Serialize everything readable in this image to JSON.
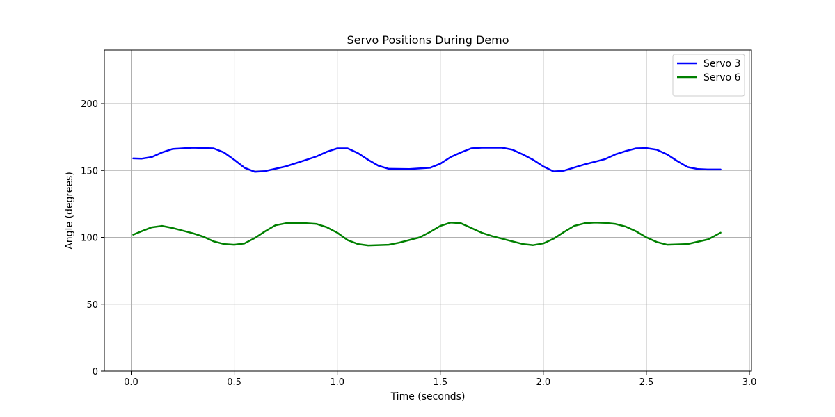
{
  "chart_data": {
    "type": "line",
    "title": "Servo Positions During Demo",
    "xlabel": "Time (seconds)",
    "ylabel": "Angle (degrees)",
    "xlim": [
      -0.13,
      3.01
    ],
    "ylim": [
      0,
      240
    ],
    "xticks": [
      0.0,
      0.5,
      1.0,
      1.5,
      2.0,
      2.5,
      3.0
    ],
    "xtick_labels": [
      "0.0",
      "0.5",
      "1.0",
      "1.5",
      "2.0",
      "2.5",
      "3.0"
    ],
    "yticks": [
      0,
      50,
      100,
      150,
      200
    ],
    "ytick_labels": [
      "0",
      "50",
      "100",
      "150",
      "200"
    ],
    "grid": true,
    "legend_position": "top-right",
    "series": [
      {
        "name": "Servo 3",
        "color": "#0000ff",
        "points": [
          [
            0.01,
            159
          ],
          [
            0.05,
            158.8
          ],
          [
            0.1,
            160
          ],
          [
            0.15,
            163.5
          ],
          [
            0.2,
            166
          ],
          [
            0.3,
            167
          ],
          [
            0.4,
            166.5
          ],
          [
            0.45,
            163.5
          ],
          [
            0.5,
            158
          ],
          [
            0.55,
            152
          ],
          [
            0.6,
            149
          ],
          [
            0.65,
            149.5
          ],
          [
            0.75,
            153
          ],
          [
            0.85,
            158
          ],
          [
            0.9,
            160.5
          ],
          [
            0.95,
            164
          ],
          [
            1.0,
            166.5
          ],
          [
            1.05,
            166.5
          ],
          [
            1.1,
            163
          ],
          [
            1.15,
            158
          ],
          [
            1.2,
            153.5
          ],
          [
            1.25,
            151.2
          ],
          [
            1.35,
            151
          ],
          [
            1.45,
            152
          ],
          [
            1.5,
            155
          ],
          [
            1.55,
            160
          ],
          [
            1.6,
            163.5
          ],
          [
            1.65,
            166.5
          ],
          [
            1.7,
            167
          ],
          [
            1.8,
            167
          ],
          [
            1.85,
            165.5
          ],
          [
            1.9,
            162
          ],
          [
            1.95,
            158
          ],
          [
            2.0,
            153
          ],
          [
            2.05,
            149.2
          ],
          [
            2.1,
            149.8
          ],
          [
            2.2,
            154.5
          ],
          [
            2.3,
            158.5
          ],
          [
            2.35,
            162
          ],
          [
            2.4,
            164.5
          ],
          [
            2.45,
            166.5
          ],
          [
            2.5,
            166.7
          ],
          [
            2.55,
            165.5
          ],
          [
            2.6,
            162
          ],
          [
            2.65,
            157
          ],
          [
            2.7,
            152.5
          ],
          [
            2.75,
            151
          ],
          [
            2.8,
            150.7
          ],
          [
            2.86,
            150.7
          ]
        ]
      },
      {
        "name": "Servo 6",
        "color": "#008000",
        "points": [
          [
            0.01,
            102
          ],
          [
            0.05,
            104.5
          ],
          [
            0.1,
            107.5
          ],
          [
            0.15,
            108.5
          ],
          [
            0.2,
            107
          ],
          [
            0.3,
            103
          ],
          [
            0.35,
            100.5
          ],
          [
            0.4,
            97
          ],
          [
            0.45,
            95
          ],
          [
            0.5,
            94.5
          ],
          [
            0.55,
            95.5
          ],
          [
            0.6,
            99.5
          ],
          [
            0.65,
            104.5
          ],
          [
            0.7,
            109
          ],
          [
            0.75,
            110.5
          ],
          [
            0.85,
            110.5
          ],
          [
            0.9,
            110
          ],
          [
            0.95,
            107.5
          ],
          [
            1.0,
            103.5
          ],
          [
            1.05,
            98
          ],
          [
            1.1,
            95
          ],
          [
            1.15,
            94
          ],
          [
            1.25,
            94.5
          ],
          [
            1.3,
            96
          ],
          [
            1.4,
            100
          ],
          [
            1.45,
            104
          ],
          [
            1.5,
            108.5
          ],
          [
            1.55,
            111
          ],
          [
            1.6,
            110.5
          ],
          [
            1.65,
            107
          ],
          [
            1.7,
            103.5
          ],
          [
            1.75,
            101
          ],
          [
            1.85,
            97
          ],
          [
            1.9,
            95
          ],
          [
            1.95,
            94.2
          ],
          [
            2.0,
            95.5
          ],
          [
            2.05,
            99
          ],
          [
            2.1,
            104
          ],
          [
            2.15,
            108.5
          ],
          [
            2.2,
            110.5
          ],
          [
            2.25,
            111
          ],
          [
            2.3,
            110.8
          ],
          [
            2.35,
            110
          ],
          [
            2.4,
            108
          ],
          [
            2.45,
            104.5
          ],
          [
            2.5,
            100
          ],
          [
            2.55,
            96.5
          ],
          [
            2.6,
            94.5
          ],
          [
            2.7,
            95
          ],
          [
            2.8,
            98.5
          ],
          [
            2.86,
            103.5
          ]
        ]
      }
    ]
  }
}
